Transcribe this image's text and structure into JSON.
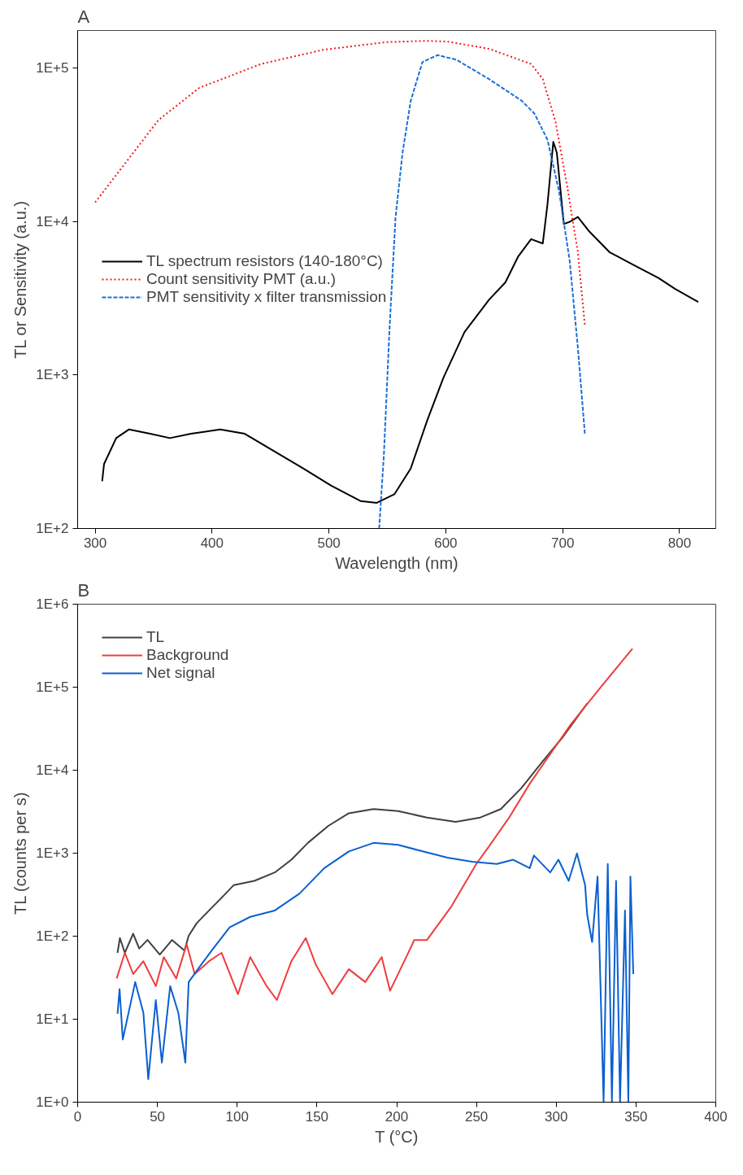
{
  "chart_data": [
    {
      "type": "line",
      "title": "A",
      "xlabel": "Wavelength (nm)",
      "ylabel": "TL or Sensitivity (a.u.)",
      "log": "y",
      "grid": false,
      "legend": "left",
      "marker": "none",
      "xlim": [
        285,
        831
      ],
      "ylim": [
        100,
        175000
      ],
      "xticks": [
        300,
        400,
        500,
        600,
        700,
        800
      ],
      "yticks": [
        {
          "value": 100,
          "label": "1E+2"
        },
        {
          "value": 1000,
          "label": "1E+3"
        },
        {
          "value": 10000,
          "label": "1E+4"
        },
        {
          "value": 100000,
          "label": "1E+5"
        }
      ],
      "series": [
        {
          "name": "TL spectrum resistors (140-180°C)",
          "color": "#000000",
          "line_style": "solid",
          "x": [
            306,
            307.6,
            318,
            329,
            347,
            364,
            382,
            407,
            428,
            453,
            478,
            502,
            527,
            541,
            556,
            570,
            584,
            598,
            616,
            637,
            651,
            662,
            673,
            683,
            687,
            692,
            695,
            701,
            706,
            713,
            722,
            740,
            761,
            782,
            796,
            816
          ],
          "values": [
            203,
            263,
            388,
            442,
            414,
            388,
            414,
            442,
            414,
            319,
            246,
            190,
            151,
            147,
            167,
            246,
            503,
            961,
            1900,
            3090,
            4010,
            5920,
            7670,
            7180,
            12900,
            33000,
            28000,
            9620,
            9930,
            10700,
            8730,
            6310,
            5190,
            4280,
            3640,
            2990
          ]
        },
        {
          "name": "Count sensitivity PMT (a.u.)",
          "color": "#f01c1c",
          "line_style": "dotted",
          "x": [
            300,
            354,
            389,
            442,
            495,
            549,
            584,
            602,
            637,
            673,
            683,
            694,
            704,
            713,
            719
          ],
          "values": [
            13300,
            45600,
            74000,
            106000,
            131000,
            147000,
            150000,
            148000,
            133000,
            106000,
            84500,
            44200,
            16700,
            6300,
            2100
          ]
        },
        {
          "name": "PMT sensitivity x filter transmission",
          "color": "#1a6fd6",
          "line_style": "dashed",
          "x": [
            543,
            547,
            552,
            557,
            563,
            570,
            580,
            593,
            609,
            637,
            665,
            676,
            687,
            697,
            706,
            713,
            719
          ],
          "values": [
            100,
            299,
            2100,
            10600,
            28000,
            61000,
            109000,
            121000,
            113000,
            84500,
            61000,
            50200,
            34000,
            15600,
            5550,
            1510,
            414
          ]
        }
      ]
    },
    {
      "type": "line",
      "title": "B",
      "xlabel": "T (°C)",
      "ylabel": "TL (counts per s)",
      "log": "y",
      "grid": false,
      "legend": "top left",
      "marker": "none",
      "xlim": [
        0,
        400
      ],
      "ylim": [
        1,
        1000000
      ],
      "xticks": [
        0,
        50,
        100,
        150,
        200,
        250,
        300,
        350,
        400
      ],
      "yticks": [
        {
          "value": 1,
          "label": "1E+0"
        },
        {
          "value": 10,
          "label": "1E+1"
        },
        {
          "value": 100,
          "label": "1E+2"
        },
        {
          "value": 1000,
          "label": "1E+3"
        },
        {
          "value": 10000,
          "label": "1E+4"
        },
        {
          "value": 100000,
          "label": "1E+5"
        },
        {
          "value": 1000000,
          "label": "1E+6"
        }
      ],
      "series": [
        {
          "name": "TL",
          "color": "#404040",
          "line_style": "solid",
          "x": [
            25,
            26.5,
            29.6,
            34.8,
            38.6,
            43.8,
            51.5,
            59.2,
            67,
            69.6,
            74.7,
            82.4,
            90.2,
            97.9,
            110.8,
            123.6,
            134,
            144.3,
            157.1,
            170,
            185.5,
            200.9,
            219,
            237,
            252.4,
            265.3,
            278.2,
            291,
            304,
            319.4
          ],
          "values": [
            63,
            95,
            63,
            107,
            71,
            90,
            60,
            90,
            67,
            101,
            144,
            204,
            290,
            413,
            464,
            586,
            834,
            1330,
            2130,
            3030,
            3400,
            3210,
            2690,
            2390,
            2690,
            3400,
            6110,
            12400,
            24900,
            63700
          ]
        },
        {
          "name": "Background",
          "color": "#f03c3c",
          "line_style": "solid",
          "x": [
            24.5,
            29.6,
            34.8,
            41.2,
            49,
            54,
            61.8,
            68.3,
            73.4,
            82.4,
            90.2,
            100.5,
            108.2,
            118.5,
            124.9,
            134,
            143,
            149.4,
            159.7,
            170,
            180.3,
            190.6,
            195.8,
            206,
            211,
            219,
            226.7,
            234.4,
            242.1,
            249.9,
            257.6,
            270.5,
            283.4,
            296.2,
            309.1,
            327.1,
            347.8
          ],
          "values": [
            31,
            63,
            35,
            50,
            25,
            56,
            31,
            80,
            35,
            50,
            63,
            20,
            56,
            25,
            17,
            50,
            95,
            45,
            20,
            40,
            28,
            56,
            22,
            56,
            90,
            90,
            144,
            230,
            413,
            741,
            1190,
            2690,
            6870,
            15600,
            35500,
            95900,
            292000
          ]
        },
        {
          "name": "Net signal",
          "color": "#0a5fd0",
          "line_style": "solid",
          "x": [
            25,
            26.3,
            28.3,
            30.9,
            36.1,
            41.2,
            44.3,
            49,
            52.8,
            58,
            63.1,
            67.5,
            69.6,
            77.3,
            85,
            95.3,
            108.2,
            123.6,
            139.1,
            154.6,
            170,
            185.5,
            200.9,
            216.4,
            231.8,
            247.3,
            262.8,
            273,
            283.4,
            286,
            296.2,
            301.4,
            307.8,
            313,
            318.1,
            319.4,
            322.5,
            325.9,
            329.7,
            332.3,
            334.9,
            337.5,
            340,
            343.1,
            345.2,
            346.5,
            348.3
          ],
          "values": [
            11.6,
            23,
            5.7,
            9.7,
            28,
            12,
            1.9,
            17,
            3,
            25,
            12,
            3,
            28,
            45,
            71,
            128,
            171,
            204,
            326,
            660,
            1050,
            1330,
            1260,
            1050,
            885,
            787,
            741,
            834,
            660,
            937,
            586,
            834,
            464,
            994,
            413,
            182,
            85,
            522,
            1,
            741,
            1,
            464,
            1,
            204,
            1,
            522,
            35
          ]
        }
      ]
    }
  ]
}
